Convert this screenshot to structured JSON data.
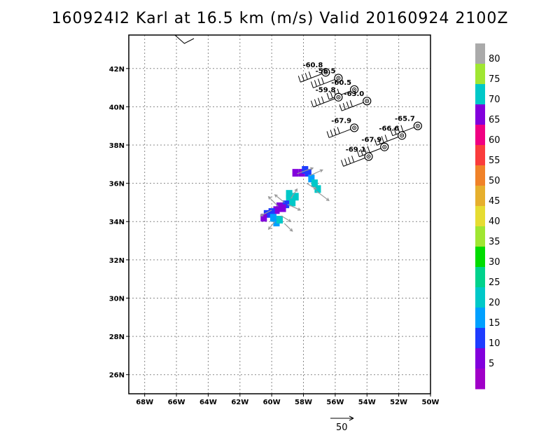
{
  "title": "160924I2 Karl at 16.5 km (m/s) Valid 20160924 2100Z",
  "map": {
    "lon_range": [
      -69,
      -50
    ],
    "lat_range": [
      25,
      43.75
    ],
    "lon_ticks": [
      "68W",
      "66W",
      "64W",
      "62W",
      "60W",
      "58W",
      "56W",
      "54W",
      "52W",
      "50W"
    ],
    "lat_ticks": [
      "26N",
      "28N",
      "30N",
      "32N",
      "34N",
      "36N",
      "38N",
      "40N",
      "42N"
    ]
  },
  "legend": {
    "labels": [
      "5",
      "10",
      "15",
      "20",
      "25",
      "30",
      "35",
      "40",
      "45",
      "50",
      "55",
      "60",
      "65",
      "70",
      "75",
      "80"
    ],
    "colors": [
      "#a000c8",
      "#8200dc",
      "#1e3cff",
      "#00a0ff",
      "#00c8c8",
      "#00d28c",
      "#00dc00",
      "#a0e632",
      "#e6dc32",
      "#e6af2d",
      "#f08228",
      "#fa3c3c",
      "#f00082",
      "#8200dc",
      "#00c8c8",
      "#a0e632",
      "#aaaaaa"
    ]
  },
  "vector_scale": {
    "label": "50"
  },
  "tracks": [
    {
      "label": "-60.8",
      "lon": -56.6,
      "lat": 41.8
    },
    {
      "label": "-56.5",
      "lon": -55.8,
      "lat": 41.5
    },
    {
      "label": "-60.5",
      "lon": -54.8,
      "lat": 40.9
    },
    {
      "label": "-59.8",
      "lon": -55.8,
      "lat": 40.5
    },
    {
      "label": "-63.0",
      "lon": -54.0,
      "lat": 40.3
    },
    {
      "label": "-67.9",
      "lon": -54.8,
      "lat": 38.9
    },
    {
      "label": "-65.7",
      "lon": -50.8,
      "lat": 39.0
    },
    {
      "label": "-66.6",
      "lon": -51.8,
      "lat": 38.5
    },
    {
      "label": "-67.9",
      "lon": -52.9,
      "lat": 37.9
    },
    {
      "label": "-69.1",
      "lon": -53.9,
      "lat": 37.4
    }
  ],
  "pixels": [
    {
      "lon": -58.1,
      "lat": 36.55,
      "c": 13
    },
    {
      "lon": -58.5,
      "lat": 36.55,
      "c": 13
    },
    {
      "lon": -57.9,
      "lat": 36.7,
      "c": 2
    },
    {
      "lon": -57.7,
      "lat": 36.55,
      "c": 2
    },
    {
      "lon": -57.5,
      "lat": 36.25,
      "c": 3
    },
    {
      "lon": -57.3,
      "lat": 36.0,
      "c": 4
    },
    {
      "lon": -57.1,
      "lat": 35.7,
      "c": 4
    },
    {
      "lon": -58.9,
      "lat": 35.2,
      "c": 4
    },
    {
      "lon": -58.7,
      "lat": 35.0,
      "c": 4
    },
    {
      "lon": -59.1,
      "lat": 34.9,
      "c": 2
    },
    {
      "lon": -59.5,
      "lat": 34.8,
      "c": 1
    },
    {
      "lon": -59.7,
      "lat": 34.6,
      "c": 13
    },
    {
      "lon": -59.3,
      "lat": 34.7,
      "c": 1
    },
    {
      "lon": -60.0,
      "lat": 34.5,
      "c": 2
    },
    {
      "lon": -60.3,
      "lat": 34.4,
      "c": 2
    },
    {
      "lon": -60.5,
      "lat": 34.2,
      "c": 1
    },
    {
      "lon": -59.9,
      "lat": 34.2,
      "c": 3
    },
    {
      "lon": -59.7,
      "lat": 33.95,
      "c": 3
    },
    {
      "lon": -59.5,
      "lat": 34.1,
      "c": 4
    },
    {
      "lon": -58.9,
      "lat": 35.45,
      "c": 4
    },
    {
      "lon": -58.5,
      "lat": 35.3,
      "c": 4
    }
  ],
  "arrows": [
    {
      "lon": -58.4,
      "lat": 36.5,
      "dlon": 1.0,
      "dlat": 0.3
    },
    {
      "lon": -57.6,
      "lat": 36.4,
      "dlon": 0.8,
      "dlat": 0.3
    },
    {
      "lon": -57.8,
      "lat": 36.0,
      "dlon": 0.6,
      "dlat": -0.3
    },
    {
      "lon": -57.2,
      "lat": 35.6,
      "dlon": 0.8,
      "dlat": -0.5
    },
    {
      "lon": -58.8,
      "lat": 35.2,
      "dlon": 0.4,
      "dlat": 0.5
    },
    {
      "lon": -59.2,
      "lat": 35.0,
      "dlon": -0.6,
      "dlat": 0.4
    },
    {
      "lon": -59.6,
      "lat": 34.8,
      "dlon": -0.6,
      "dlat": 0.5
    },
    {
      "lon": -60.0,
      "lat": 34.6,
      "dlon": -0.7,
      "dlat": -0.3
    },
    {
      "lon": -59.4,
      "lat": 34.3,
      "dlon": 0.6,
      "dlat": -0.3
    },
    {
      "lon": -59.0,
      "lat": 34.9,
      "dlon": 0.8,
      "dlat": -0.3
    },
    {
      "lon": -59.8,
      "lat": 34.0,
      "dlon": -0.4,
      "dlat": -0.4
    },
    {
      "lon": -59.2,
      "lat": 33.9,
      "dlon": 0.5,
      "dlat": -0.4
    }
  ]
}
